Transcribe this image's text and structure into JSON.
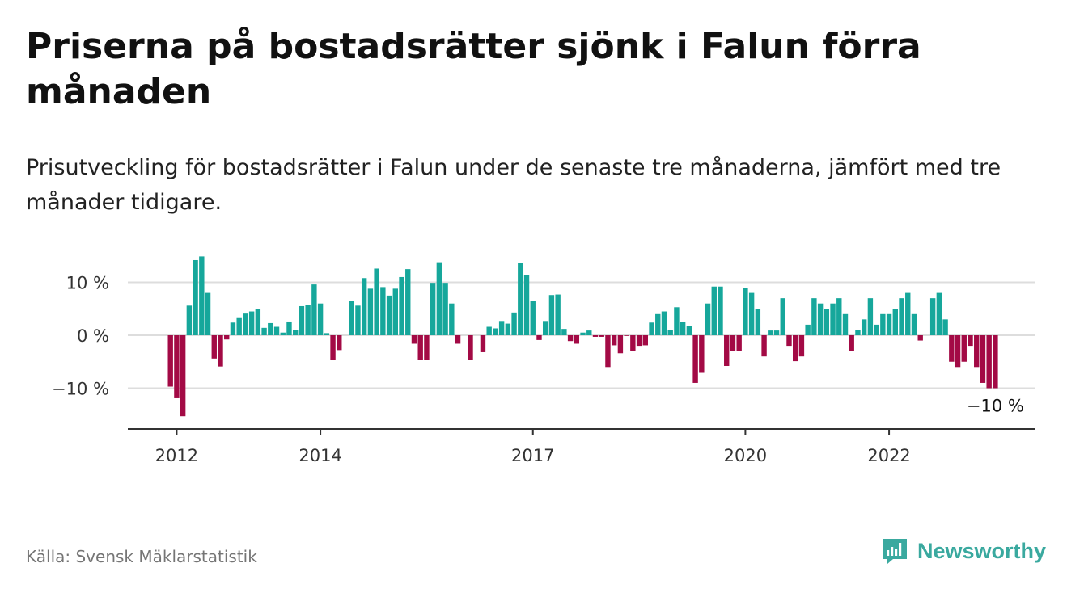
{
  "header": {
    "title": "Priserna på bostadsrätter sjönk i Falun förra månaden",
    "subtitle": "Prisutveckling för bostadsrätter i Falun under de senaste tre månaderna, jämfört med tre månader tidigare."
  },
  "footer": {
    "source": "Källa: Svensk Mäklarstatistik",
    "brand": "Newsworthy",
    "brand_icon": "newsworthy-chart-icon"
  },
  "colors": {
    "positive": "#16a79b",
    "negative": "#a30a45",
    "grid": "#dddddd",
    "axis": "#333333",
    "brand": "#3aa99f"
  },
  "chart_data": {
    "type": "bar",
    "title": "",
    "xlabel": "",
    "ylabel": "",
    "ylim": [
      -17,
      19
    ],
    "grid": true,
    "y_ticks": [
      {
        "value": 10,
        "label": "10 %"
      },
      {
        "value": 0,
        "label": "0 %"
      },
      {
        "value": -10,
        "label": "−10 %"
      }
    ],
    "x_ticks": [
      {
        "index": 1,
        "label": "2012"
      },
      {
        "index": 24,
        "label": "2014"
      },
      {
        "index": 58,
        "label": "2017"
      },
      {
        "index": 92,
        "label": "2020"
      },
      {
        "index": 115,
        "label": "2022"
      }
    ],
    "last_value_label": "−10 %",
    "values": [
      -9.7,
      -11.9,
      -15.3,
      5.6,
      14.2,
      14.9,
      8.0,
      -4.4,
      -5.9,
      -0.8,
      2.4,
      3.4,
      4.1,
      4.5,
      5.0,
      1.4,
      2.3,
      1.6,
      0.5,
      2.6,
      1.0,
      5.5,
      5.7,
      9.6,
      6.0,
      0.4,
      -4.6,
      -2.8,
      0.0,
      6.5,
      5.6,
      10.8,
      8.8,
      12.6,
      9.1,
      7.5,
      8.8,
      11.0,
      12.5,
      -1.6,
      -4.7,
      -4.7,
      9.9,
      13.8,
      9.9,
      6.0,
      -1.6,
      0.0,
      -4.7,
      0.0,
      -3.2,
      1.6,
      1.3,
      2.7,
      2.2,
      4.3,
      13.7,
      11.3,
      6.5,
      -0.9,
      2.7,
      7.6,
      7.7,
      1.2,
      -1.1,
      -1.6,
      0.5,
      0.9,
      -0.3,
      -0.3,
      -6.0,
      -1.9,
      -3.4,
      -0.1,
      -3.0,
      -2.0,
      -1.9,
      2.4,
      4.0,
      4.5,
      1.0,
      5.3,
      2.5,
      1.8,
      -9.0,
      -7.1,
      6.0,
      9.2,
      9.2,
      -5.8,
      -3.0,
      -2.9,
      9.0,
      8.0,
      5.0,
      -4.0,
      0.9,
      0.9,
      7.0,
      -2.0,
      -4.9,
      -4.0,
      2.0,
      7.0,
      6.0,
      5.0,
      6.0,
      7.0,
      4.0,
      -3.0,
      1.0,
      3.0,
      7.0,
      2.0,
      4.0,
      4.0,
      5.0,
      7.0,
      8.0,
      4.0,
      -1.0,
      0.0,
      7.0,
      8.0,
      3.0,
      -5.0,
      -6.0,
      -5.0,
      -2.0,
      -6.0,
      -9.0,
      -10.0,
      -10.0
    ]
  }
}
